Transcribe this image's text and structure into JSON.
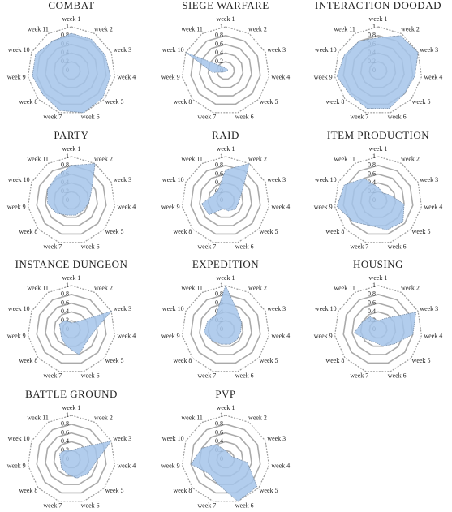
{
  "chart_data": [
    {
      "type": "radar",
      "title": "COMBAT",
      "categories": [
        "week 1",
        "week 2",
        "week 3",
        "week 4",
        "week 5",
        "week 6",
        "week 7",
        "week 8",
        "week 9",
        "week 10",
        "week 11"
      ],
      "values": [
        0.85,
        0.85,
        0.85,
        0.9,
        0.95,
        1,
        0.95,
        0.85,
        0.9,
        0.9,
        0.8
      ],
      "ylim": [
        0,
        1
      ],
      "yticks": [
        0,
        0.2,
        0.4,
        0.6,
        0.8,
        1
      ],
      "color": "#a4c4ea"
    },
    {
      "type": "radar",
      "title": "SIEGE WARFARE",
      "categories": [
        "week 1",
        "week 2",
        "week 3",
        "week 4",
        "week 5",
        "week 6",
        "week 7",
        "week 8",
        "week 9",
        "week 10",
        "week 11"
      ],
      "values": [
        0.05,
        0.05,
        0.05,
        0.05,
        0.02,
        0.02,
        0.02,
        0.05,
        0.3,
        1,
        0.1
      ],
      "ylim": [
        0,
        1
      ],
      "yticks": [
        0,
        0.2,
        0.4,
        0.6,
        0.8,
        1
      ],
      "color": "#a4c4ea"
    },
    {
      "type": "radar",
      "title": "INTERACTION DOODAD",
      "categories": [
        "week 1",
        "week 2",
        "week 3",
        "week 4",
        "week 5",
        "week 6",
        "week 7",
        "week 8",
        "week 9",
        "week 10",
        "week 11"
      ],
      "values": [
        0.75,
        0.95,
        1,
        0.85,
        0.8,
        0.9,
        0.9,
        0.85,
        0.95,
        0.85,
        0.8
      ],
      "ylim": [
        0,
        1
      ],
      "yticks": [
        0,
        0.2,
        0.4,
        0.6,
        0.8,
        1
      ],
      "color": "#a4c4ea"
    },
    {
      "type": "radar",
      "title": "PARTY",
      "categories": [
        "week 1",
        "week 2",
        "week 3",
        "week 4",
        "week 5",
        "week 6",
        "week 7",
        "week 8",
        "week 9",
        "week 10",
        "week 11"
      ],
      "values": [
        0.8,
        1,
        0.5,
        0.4,
        0.35,
        0.35,
        0.35,
        0.45,
        0.55,
        0.6,
        0.65
      ],
      "ylim": [
        0,
        1
      ],
      "yticks": [
        0,
        0.2,
        0.4,
        0.6,
        0.8,
        1
      ],
      "color": "#a4c4ea"
    },
    {
      "type": "radar",
      "title": "RAID",
      "categories": [
        "week 1",
        "week 2",
        "week 3",
        "week 4",
        "week 5",
        "week 6",
        "week 7",
        "week 8",
        "week 9",
        "week 10",
        "week 11"
      ],
      "values": [
        0.7,
        1,
        0.4,
        0.3,
        0.3,
        0.25,
        0.2,
        0.5,
        0.55,
        0.3,
        0.3
      ],
      "ylim": [
        0,
        1
      ],
      "yticks": [
        0,
        0.2,
        0.4,
        0.6,
        0.8,
        1
      ],
      "color": "#a4c4ea"
    },
    {
      "type": "radar",
      "title": "ITEM PRODUCTION",
      "categories": [
        "week 1",
        "week 2",
        "week 3",
        "week 4",
        "week 5",
        "week 6",
        "week 7",
        "week 8",
        "week 9",
        "week 10",
        "week 11"
      ],
      "values": [
        0.3,
        0.2,
        0.3,
        0.6,
        0.75,
        0.7,
        0.6,
        0.75,
        0.95,
        0.85,
        0.6
      ],
      "ylim": [
        0,
        1
      ],
      "yticks": [
        0,
        0.2,
        0.4,
        0.6,
        0.8,
        1
      ],
      "color": "#a4c4ea"
    },
    {
      "type": "radar",
      "title": "INSTANCE DUNGEON",
      "categories": [
        "week 1",
        "week 2",
        "week 3",
        "week 4",
        "week 5",
        "week 6",
        "week 7",
        "week 8",
        "week 9",
        "week 10",
        "week 11"
      ],
      "values": [
        0.15,
        0.2,
        1,
        0.5,
        0.45,
        0.6,
        0.4,
        0.3,
        0.25,
        0.3,
        0.25
      ],
      "ylim": [
        0,
        1
      ],
      "yticks": [
        0,
        0.2,
        0.4,
        0.6,
        0.8,
        1
      ],
      "color": "#a4c4ea"
    },
    {
      "type": "radar",
      "title": "EXPEDITION",
      "categories": [
        "week 1",
        "week 2",
        "week 3",
        "week 4",
        "week 5",
        "week 6",
        "week 7",
        "week 8",
        "week 9",
        "week 10",
        "week 11"
      ],
      "values": [
        1,
        0.5,
        0.4,
        0.35,
        0.35,
        0.35,
        0.35,
        0.4,
        0.5,
        0.45,
        0.4
      ],
      "ylim": [
        0,
        1
      ],
      "yticks": [
        0,
        0.2,
        0.4,
        0.6,
        0.8,
        1
      ],
      "color": "#a4c4ea"
    },
    {
      "type": "radar",
      "title": "HOUSING",
      "categories": [
        "week 1",
        "week 2",
        "week 3",
        "week 4",
        "week 5",
        "week 6",
        "week 7",
        "week 8",
        "week 9",
        "week 10",
        "week 11"
      ],
      "values": [
        0.2,
        0.3,
        0.95,
        0.8,
        0.5,
        0.4,
        0.3,
        0.35,
        0.55,
        0.4,
        0.35
      ],
      "ylim": [
        0,
        1
      ],
      "yticks": [
        0,
        0.2,
        0.4,
        0.6,
        0.8,
        1
      ],
      "color": "#a4c4ea"
    },
    {
      "type": "radar",
      "title": "BATTLE GROUND",
      "categories": [
        "week 1",
        "week 2",
        "week 3",
        "week 4",
        "week 5",
        "week 6",
        "week 7",
        "week 8",
        "week 9",
        "week 10",
        "week 11"
      ],
      "values": [
        0.2,
        0.3,
        1,
        0.55,
        0.5,
        0.45,
        0.35,
        0.3,
        0.25,
        0.3,
        0.25
      ],
      "ylim": [
        0,
        1
      ],
      "yticks": [
        0,
        0.2,
        0.4,
        0.6,
        0.8,
        1
      ],
      "color": "#a4c4ea"
    },
    {
      "type": "radar",
      "title": "PVP",
      "categories": [
        "week 1",
        "week 2",
        "week 3",
        "week 4",
        "week 5",
        "week 6",
        "week 7",
        "week 8",
        "week 9",
        "week 10",
        "week 11"
      ],
      "values": [
        0.2,
        0.15,
        0.15,
        0.5,
        0.95,
        1,
        0.6,
        0.5,
        0.8,
        0.6,
        0.4
      ],
      "ylim": [
        0,
        1
      ],
      "yticks": [
        0,
        0.2,
        0.4,
        0.6,
        0.8,
        1
      ],
      "color": "#a4c4ea"
    }
  ]
}
